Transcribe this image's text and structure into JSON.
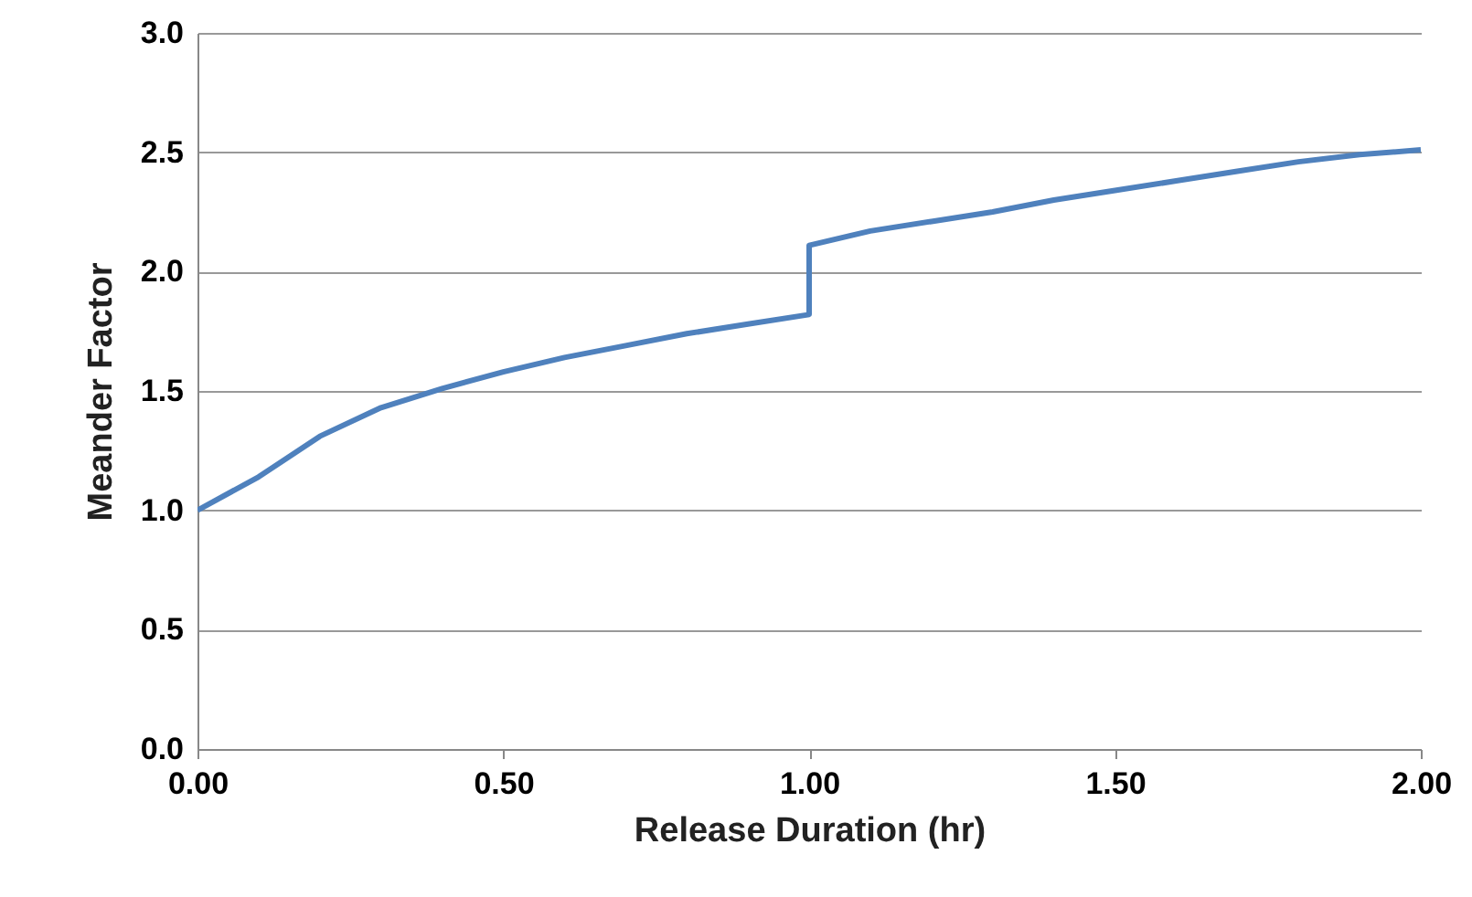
{
  "chart_data": {
    "type": "line",
    "xlabel": "Release Duration (hr)",
    "ylabel": "Meander Factor",
    "x": [
      0,
      0.1,
      0.2,
      0.3,
      0.4,
      0.5,
      0.6,
      0.7,
      0.8,
      0.9,
      1.0,
      1.0,
      1.1,
      1.2,
      1.3,
      1.4,
      1.5,
      1.6,
      1.7,
      1.8,
      1.9,
      2.0
    ],
    "series": [
      {
        "color": "#4f81bd",
        "values": [
          1.0,
          1.14,
          1.31,
          1.43,
          1.51,
          1.58,
          1.64,
          1.69,
          1.74,
          1.78,
          1.82,
          2.11,
          2.17,
          2.21,
          2.25,
          2.3,
          2.34,
          2.38,
          2.42,
          2.46,
          2.49,
          2.51
        ]
      }
    ],
    "xlim": [
      0,
      2
    ],
    "ylim": [
      0,
      3
    ],
    "xticks": [
      {
        "value": 0,
        "label": "0.00"
      },
      {
        "value": 0.5,
        "label": "0.50"
      },
      {
        "value": 1,
        "label": "1.00"
      },
      {
        "value": 1.5,
        "label": "1.50"
      },
      {
        "value": 2,
        "label": "2.00"
      }
    ],
    "yticks": [
      {
        "value": 0,
        "label": "0.0"
      },
      {
        "value": 0.5,
        "label": "0.5"
      },
      {
        "value": 1,
        "label": "1.0"
      },
      {
        "value": 1.5,
        "label": "1.5"
      },
      {
        "value": 2,
        "label": "2.0"
      },
      {
        "value": 2.5,
        "label": "2.5"
      },
      {
        "value": 3,
        "label": "3.0"
      }
    ],
    "grid": "y",
    "marker": "none",
    "line_style": "solid"
  }
}
